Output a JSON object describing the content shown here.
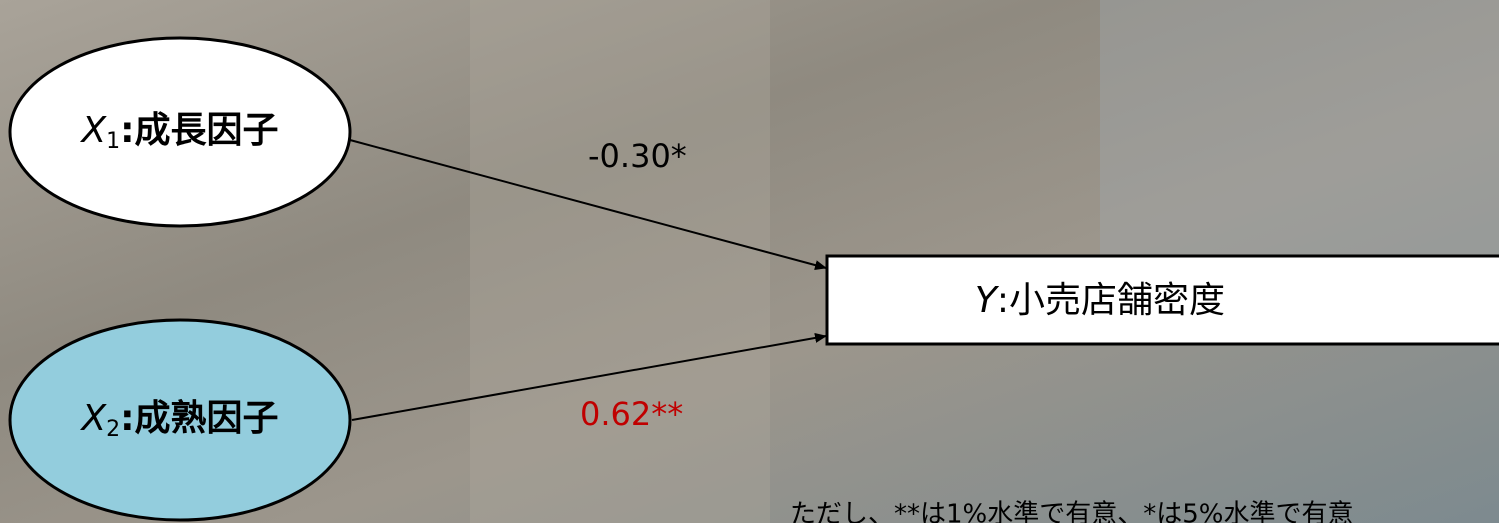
{
  "nodes": [
    {
      "var": "X",
      "sub": "1",
      "label": ":成長因子"
    },
    {
      "var": "X",
      "sub": "2",
      "label": ":成熟因子"
    },
    {
      "var": "Y",
      "label": ":小売店舗密度"
    }
  ],
  "edges": [
    {
      "from": "X1",
      "to": "Y",
      "label": "-0.30*"
    },
    {
      "from": "X2",
      "to": "Y",
      "label": "0.62**"
    }
  ],
  "note": "ただし、**は1%水準で有意、*は5%水準で有意"
}
